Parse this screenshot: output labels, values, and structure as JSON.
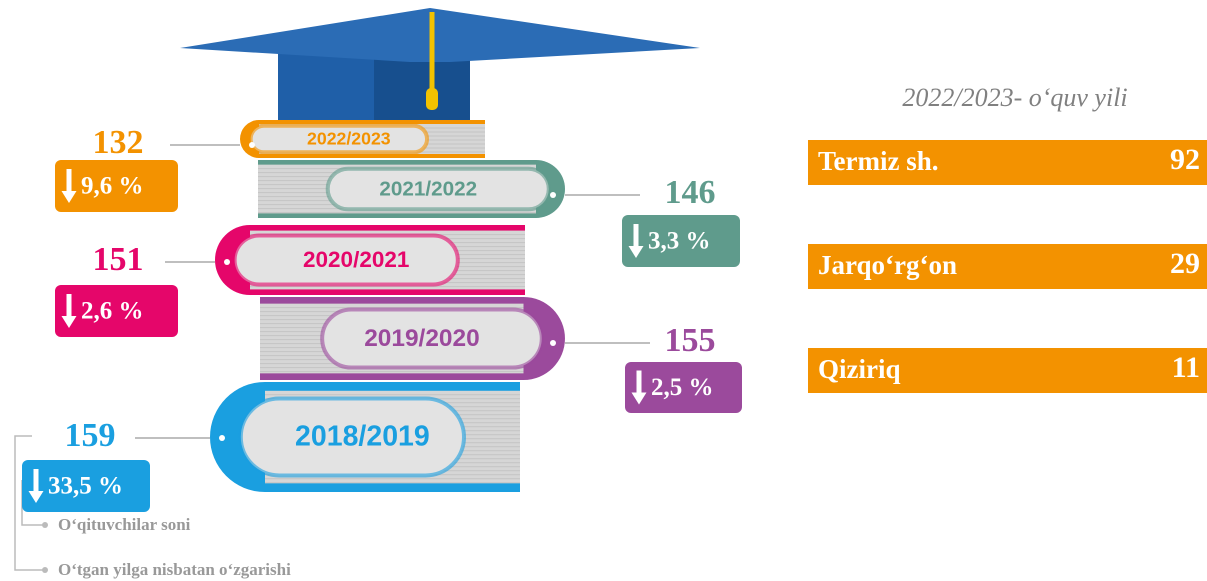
{
  "books": [
    {
      "year": "2022/2023",
      "count": "132",
      "change": "9,6 %",
      "color": "#f39200"
    },
    {
      "year": "2021/2022",
      "count": "146",
      "change": "3,3 %",
      "color": "#5f9b8c"
    },
    {
      "year": "2020/2021",
      "count": "151",
      "change": "2,6 %",
      "color": "#e5066a"
    },
    {
      "year": "2019/2020",
      "count": "155",
      "change": "2,5 %",
      "color": "#9b4a9c"
    },
    {
      "year": "2018/2019",
      "count": "159",
      "change": "33,5 %",
      "color": "#1a9fe0"
    }
  ],
  "panel": {
    "title": "2022/2023- o‘quv yili",
    "color": "#f39200",
    "rows": [
      {
        "name": "Termiz sh.",
        "value": "92"
      },
      {
        "name": "Jarqo‘rg‘on",
        "value": "29"
      },
      {
        "name": "Qiziriq",
        "value": "11"
      }
    ]
  },
  "legend": {
    "count": "O‘qituvchilar soni",
    "change": "O‘tgan yilga nisbatan o‘zgarishi"
  }
}
